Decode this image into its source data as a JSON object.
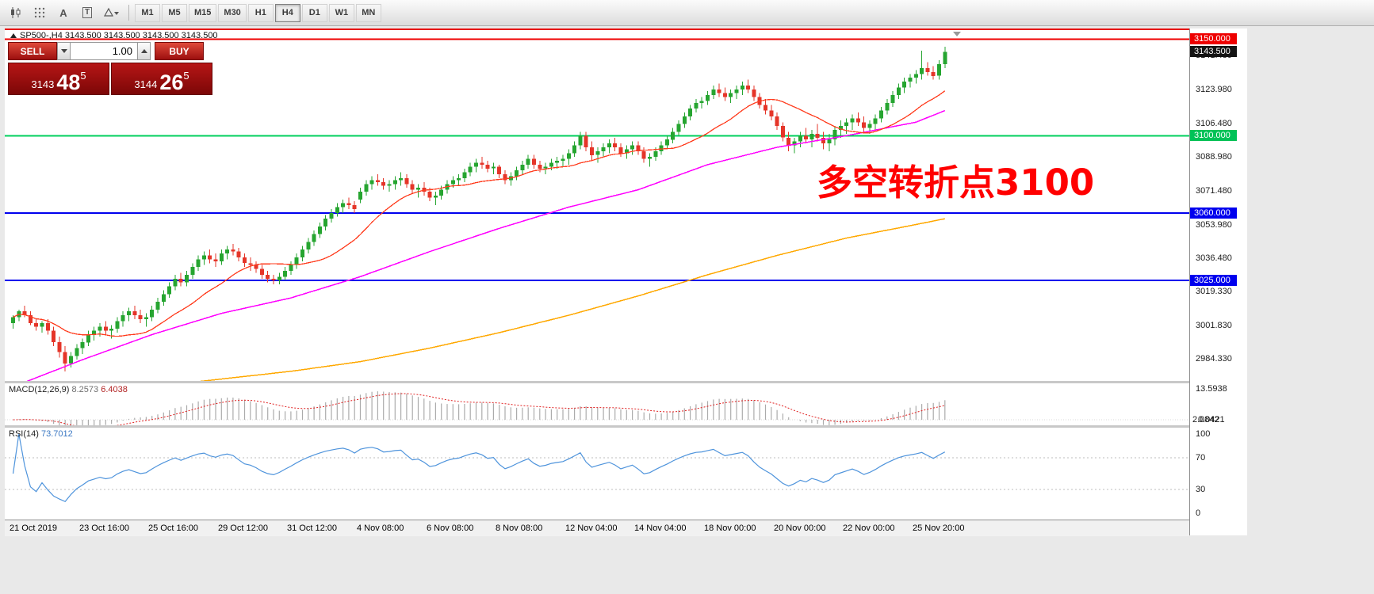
{
  "toolbar": {
    "icons": [
      {
        "name": "chart-type-icon"
      },
      {
        "name": "grid-icon"
      },
      {
        "name": "text-tool-icon",
        "glyph": "A"
      },
      {
        "name": "textbox-tool-icon",
        "glyph": "T"
      },
      {
        "name": "drawing-tools-icon"
      }
    ],
    "timeframes": [
      "M1",
      "M5",
      "M15",
      "M30",
      "H1",
      "H4",
      "D1",
      "W1",
      "MN"
    ],
    "active_timeframe": "H4"
  },
  "chart": {
    "header_text": "SP500-,H4 3143.500 3143.500 3143.500 3143.500",
    "annotation": {
      "text": "多空转折点3100",
      "color": "#ff0000"
    },
    "levels": [
      {
        "value": 3150.0,
        "color": "#ee0000"
      },
      {
        "value": 3100.0,
        "color": "#00cf5d"
      },
      {
        "value": 3060.0,
        "color": "#0000ee"
      },
      {
        "value": 3025.0,
        "color": "#0000ee"
      }
    ],
    "price_axis": {
      "ticks": [
        {
          "text": "3141.480",
          "value": 3141.48
        },
        {
          "text": "3123.980",
          "value": 3123.98
        },
        {
          "text": "3106.480",
          "value": 3106.48
        },
        {
          "text": "3088.980",
          "value": 3088.98
        },
        {
          "text": "3071.480",
          "value": 3071.48
        },
        {
          "text": "3053.980",
          "value": 3053.98
        },
        {
          "text": "3036.480",
          "value": 3036.48
        },
        {
          "text": "3019.330",
          "value": 3019.33
        },
        {
          "text": "3001.830",
          "value": 3001.83
        },
        {
          "text": "2984.330",
          "value": 2984.33
        }
      ],
      "badges": [
        {
          "text": "3150.000",
          "value": 3150.0,
          "bg": "#ee0000"
        },
        {
          "text": "3143.500",
          "value": 3143.5,
          "bg": "#141414"
        },
        {
          "text": "3100.000",
          "value": 3100.0,
          "bg": "#00c257"
        },
        {
          "text": "3060.000",
          "value": 3060.0,
          "bg": "#0000ee"
        },
        {
          "text": "3025.000",
          "value": 3025.0,
          "bg": "#0000ee"
        }
      ]
    }
  },
  "chart_data": {
    "type": "candlestick",
    "symbol": "SP500-",
    "timeframe": "H4",
    "price_range": {
      "min": 2973,
      "max": 3155.5
    },
    "up_color": "#26a530",
    "down_color": "#e53529",
    "x_labels": [
      "21 Oct 2019",
      "23 Oct 16:00",
      "25 Oct 16:00",
      "29 Oct 12:00",
      "31 Oct 12:00",
      "4 Nov 08:00",
      "6 Nov 08:00",
      "8 Nov 08:00",
      "12 Nov 04:00",
      "14 Nov 04:00",
      "18 Nov 00:00",
      "20 Nov 00:00",
      "22 Nov 00:00",
      "25 Nov 20:00"
    ],
    "candles": [
      [
        3003,
        3007,
        3000,
        3006
      ],
      [
        3006,
        3010,
        3004,
        3009
      ],
      [
        3009,
        3012,
        3006,
        3007
      ],
      [
        3007,
        3009,
        3002,
        3003
      ],
      [
        3003,
        3005,
        2999,
        3001
      ],
      [
        3001,
        3004,
        2998,
        3003
      ],
      [
        3003,
        3005,
        2997,
        2999
      ],
      [
        2999,
        3001,
        2991,
        2993
      ],
      [
        2993,
        2996,
        2985,
        2988
      ],
      [
        2988,
        2991,
        2978,
        2982
      ],
      [
        2982,
        2988,
        2980,
        2986
      ],
      [
        2986,
        2992,
        2984,
        2990
      ],
      [
        2990,
        2995,
        2987,
        2993
      ],
      [
        2993,
        2999,
        2991,
        2997
      ],
      [
        2997,
        3001,
        2994,
        2999
      ],
      [
        2999,
        3003,
        2996,
        3001
      ],
      [
        3001,
        3004,
        2997,
        2999
      ],
      [
        2999,
        3002,
        2995,
        3000
      ],
      [
        3000,
        3006,
        2998,
        3004
      ],
      [
        3004,
        3009,
        3001,
        3007
      ],
      [
        3007,
        3011,
        3004,
        3009
      ],
      [
        3009,
        3012,
        3005,
        3007
      ],
      [
        3007,
        3010,
        3003,
        3005
      ],
      [
        3005,
        3008,
        3001,
        3006
      ],
      [
        3006,
        3012,
        3004,
        3010
      ],
      [
        3010,
        3016,
        3008,
        3014
      ],
      [
        3014,
        3020,
        3012,
        3018
      ],
      [
        3018,
        3024,
        3016,
        3022
      ],
      [
        3022,
        3028,
        3020,
        3026
      ],
      [
        3026,
        3029,
        3022,
        3024
      ],
      [
        3024,
        3030,
        3022,
        3028
      ],
      [
        3028,
        3034,
        3026,
        3032
      ],
      [
        3032,
        3038,
        3030,
        3036
      ],
      [
        3036,
        3040,
        3033,
        3038
      ],
      [
        3038,
        3041,
        3034,
        3036
      ],
      [
        3036,
        3039,
        3032,
        3035
      ],
      [
        3035,
        3041,
        3033,
        3039
      ],
      [
        3039,
        3043,
        3036,
        3041
      ],
      [
        3041,
        3044,
        3038,
        3040
      ],
      [
        3040,
        3042,
        3035,
        3037
      ],
      [
        3037,
        3039,
        3032,
        3034
      ],
      [
        3034,
        3037,
        3030,
        3033
      ],
      [
        3033,
        3035,
        3029,
        3031
      ],
      [
        3031,
        3033,
        3026,
        3028
      ],
      [
        3028,
        3030,
        3024,
        3026
      ],
      [
        3026,
        3028,
        3023,
        3025
      ],
      [
        3025,
        3029,
        3023,
        3027
      ],
      [
        3027,
        3032,
        3025,
        3030
      ],
      [
        3030,
        3035,
        3028,
        3033
      ],
      [
        3033,
        3039,
        3031,
        3037
      ],
      [
        3037,
        3043,
        3035,
        3041
      ],
      [
        3041,
        3047,
        3039,
        3045
      ],
      [
        3045,
        3051,
        3043,
        3049
      ],
      [
        3049,
        3055,
        3047,
        3053
      ],
      [
        3053,
        3059,
        3051,
        3057
      ],
      [
        3057,
        3062,
        3055,
        3060
      ],
      [
        3060,
        3065,
        3058,
        3063
      ],
      [
        3063,
        3067,
        3060,
        3065
      ],
      [
        3065,
        3068,
        3062,
        3064
      ],
      [
        3064,
        3066,
        3060,
        3062
      ],
      [
        3067,
        3073,
        3065,
        3071
      ],
      [
        3071,
        3077,
        3069,
        3075
      ],
      [
        3075,
        3079,
        3072,
        3077
      ],
      [
        3077,
        3080,
        3074,
        3076
      ],
      [
        3076,
        3078,
        3072,
        3074
      ],
      [
        3074,
        3077,
        3071,
        3075
      ],
      [
        3075,
        3079,
        3072,
        3077
      ],
      [
        3077,
        3081,
        3074,
        3078
      ],
      [
        3078,
        3080,
        3073,
        3075
      ],
      [
        3075,
        3077,
        3070,
        3072
      ],
      [
        3072,
        3075,
        3068,
        3073
      ],
      [
        3073,
        3076,
        3069,
        3071
      ],
      [
        3071,
        3073,
        3066,
        3068
      ],
      [
        3068,
        3071,
        3064,
        3069
      ],
      [
        3069,
        3074,
        3067,
        3072
      ],
      [
        3072,
        3077,
        3070,
        3075
      ],
      [
        3075,
        3079,
        3073,
        3077
      ],
      [
        3077,
        3080,
        3074,
        3078
      ],
      [
        3078,
        3083,
        3076,
        3081
      ],
      [
        3081,
        3086,
        3079,
        3084
      ],
      [
        3084,
        3088,
        3081,
        3086
      ],
      [
        3086,
        3089,
        3083,
        3085
      ],
      [
        3085,
        3087,
        3081,
        3083
      ],
      [
        3083,
        3086,
        3080,
        3084
      ],
      [
        3084,
        3085,
        3078,
        3080
      ],
      [
        3080,
        3082,
        3075,
        3077
      ],
      [
        3077,
        3081,
        3074,
        3079
      ],
      [
        3079,
        3084,
        3077,
        3082
      ],
      [
        3082,
        3087,
        3080,
        3085
      ],
      [
        3085,
        3090,
        3083,
        3088
      ],
      [
        3088,
        3090,
        3083,
        3085
      ],
      [
        3085,
        3087,
        3081,
        3083
      ],
      [
        3083,
        3086,
        3080,
        3084
      ],
      [
        3084,
        3088,
        3082,
        3086
      ],
      [
        3086,
        3089,
        3083,
        3087
      ],
      [
        3087,
        3090,
        3084,
        3088
      ],
      [
        3088,
        3093,
        3085,
        3091
      ],
      [
        3091,
        3097,
        3089,
        3095
      ],
      [
        3095,
        3102,
        3093,
        3100
      ],
      [
        3100,
        3102,
        3092,
        3094
      ],
      [
        3094,
        3097,
        3087,
        3090
      ],
      [
        3090,
        3094,
        3086,
        3092
      ],
      [
        3092,
        3096,
        3089,
        3094
      ],
      [
        3094,
        3098,
        3091,
        3096
      ],
      [
        3096,
        3099,
        3092,
        3094
      ],
      [
        3094,
        3096,
        3089,
        3091
      ],
      [
        3091,
        3095,
        3088,
        3093
      ],
      [
        3093,
        3097,
        3090,
        3095
      ],
      [
        3095,
        3097,
        3090,
        3092
      ],
      [
        3092,
        3094,
        3086,
        3088
      ],
      [
        3088,
        3091,
        3084,
        3089
      ],
      [
        3089,
        3094,
        3087,
        3092
      ],
      [
        3092,
        3097,
        3090,
        3095
      ],
      [
        3095,
        3100,
        3093,
        3098
      ],
      [
        3098,
        3104,
        3096,
        3102
      ],
      [
        3102,
        3108,
        3100,
        3106
      ],
      [
        3106,
        3112,
        3104,
        3110
      ],
      [
        3110,
        3116,
        3108,
        3114
      ],
      [
        3114,
        3119,
        3112,
        3117
      ],
      [
        3117,
        3120,
        3114,
        3118
      ],
      [
        3118,
        3123,
        3116,
        3121
      ],
      [
        3121,
        3126,
        3119,
        3124
      ],
      [
        3124,
        3127,
        3120,
        3122
      ],
      [
        3122,
        3125,
        3118,
        3120
      ],
      [
        3120,
        3124,
        3117,
        3122
      ],
      [
        3122,
        3126,
        3119,
        3124
      ],
      [
        3124,
        3128,
        3121,
        3126
      ],
      [
        3126,
        3129,
        3122,
        3124
      ],
      [
        3124,
        3126,
        3118,
        3120
      ],
      [
        3120,
        3122,
        3114,
        3116
      ],
      [
        3116,
        3119,
        3111,
        3113
      ],
      [
        3113,
        3116,
        3108,
        3110
      ],
      [
        3110,
        3112,
        3103,
        3105
      ],
      [
        3105,
        3107,
        3097,
        3099
      ],
      [
        3099,
        3102,
        3092,
        3095
      ],
      [
        3095,
        3099,
        3091,
        3097
      ],
      [
        3097,
        3102,
        3094,
        3100
      ],
      [
        3100,
        3104,
        3096,
        3098
      ],
      [
        3098,
        3103,
        3094,
        3101
      ],
      [
        3101,
        3106,
        3097,
        3099
      ],
      [
        3099,
        3102,
        3093,
        3096
      ],
      [
        3096,
        3101,
        3092,
        3098
      ],
      [
        3098,
        3105,
        3095,
        3103
      ],
      [
        3103,
        3108,
        3099,
        3105
      ],
      [
        3105,
        3109,
        3101,
        3107
      ],
      [
        3107,
        3111,
        3103,
        3109
      ],
      [
        3109,
        3112,
        3105,
        3107
      ],
      [
        3107,
        3110,
        3102,
        3104
      ],
      [
        3104,
        3108,
        3101,
        3106
      ],
      [
        3106,
        3111,
        3103,
        3109
      ],
      [
        3109,
        3115,
        3107,
        3113
      ],
      [
        3113,
        3119,
        3111,
        3117
      ],
      [
        3117,
        3123,
        3115,
        3121
      ],
      [
        3121,
        3127,
        3119,
        3125
      ],
      [
        3125,
        3130,
        3122,
        3128
      ],
      [
        3128,
        3132,
        3125,
        3130
      ],
      [
        3130,
        3134,
        3127,
        3132
      ],
      [
        3132,
        3144,
        3129,
        3135
      ],
      [
        3135,
        3138,
        3131,
        3133
      ],
      [
        3133,
        3136,
        3129,
        3131
      ],
      [
        3131,
        3139,
        3129,
        3137
      ],
      [
        3137,
        3146,
        3135,
        3143.5
      ]
    ],
    "ma_fast": {
      "color": "#ff3c1e",
      "period": 16
    },
    "ma_medium": {
      "color": "#ff00ff",
      "anchors": [
        [
          0,
          2970
        ],
        [
          12,
          2984
        ],
        [
          24,
          2997
        ],
        [
          36,
          3008
        ],
        [
          48,
          3016
        ],
        [
          60,
          3027
        ],
        [
          72,
          3040
        ],
        [
          84,
          3052
        ],
        [
          96,
          3063
        ],
        [
          108,
          3072
        ],
        [
          120,
          3085
        ],
        [
          132,
          3094
        ],
        [
          144,
          3100
        ],
        [
          156,
          3107
        ],
        [
          161,
          3113
        ]
      ]
    },
    "ma_slow": {
      "color": "#ffa800",
      "anchors": [
        [
          0,
          2962
        ],
        [
          12,
          2966
        ],
        [
          24,
          2970
        ],
        [
          36,
          2974
        ],
        [
          48,
          2978
        ],
        [
          60,
          2983
        ],
        [
          72,
          2990
        ],
        [
          84,
          2998
        ],
        [
          96,
          3007
        ],
        [
          108,
          3017
        ],
        [
          120,
          3028
        ],
        [
          132,
          3038
        ],
        [
          144,
          3047
        ],
        [
          156,
          3054
        ],
        [
          161,
          3057
        ]
      ]
    }
  },
  "trade_panel": {
    "sell_label": "SELL",
    "buy_label": "BUY",
    "volume": "1.00",
    "bid_small": "3143",
    "bid_big": "48",
    "bid_sup": "5",
    "ask_small": "3144",
    "ask_big": "26",
    "ask_sup": "5"
  },
  "macd": {
    "name": "MACD(12,26,9)",
    "main_value": "8.2573",
    "signal_value": "6.4038",
    "axis_top": "13.5938",
    "axis_bottom": [
      "2.0842",
      "0.0421"
    ],
    "params": {
      "fast": 12,
      "slow": 26,
      "signal": 9
    }
  },
  "rsi": {
    "name": "RSI(14)",
    "value": "73.7012",
    "period": 14,
    "axis": [
      {
        "text": "100",
        "value": 100
      },
      {
        "text": "70",
        "value": 70
      },
      {
        "text": "30",
        "value": 30
      },
      {
        "text": "0",
        "value": 0
      }
    ],
    "levels": [
      70,
      30
    ]
  }
}
